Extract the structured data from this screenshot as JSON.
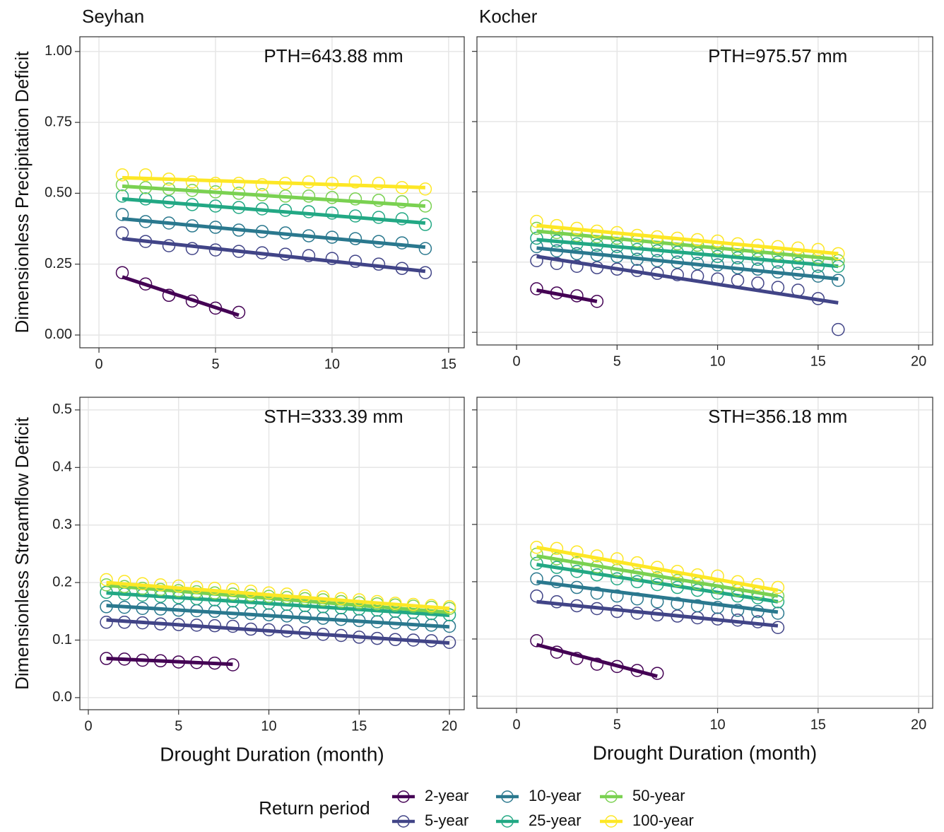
{
  "chart_data": [
    {
      "type": "scatter",
      "title": "Seyhan",
      "ylabel": "Dimensionless Precipitation Deficit",
      "annotation": "PTH=643.88 mm",
      "xlim": [
        -0.82,
        15.67
      ],
      "xticks": [
        0,
        5,
        10,
        15
      ],
      "ylim": [
        -0.045,
        1.052
      ],
      "yticks": [
        {
          "value": 0,
          "label": "0.00"
        },
        0.25,
        {
          "value": 0.5,
          "label": "0.50"
        },
        0.75,
        {
          "value": 1,
          "label": "1.00"
        }
      ],
      "grid": true,
      "series": [
        {
          "x": [
            1,
            2,
            3,
            4,
            5,
            6
          ],
          "values": [
            0.22,
            0.18,
            0.14,
            0.12,
            0.095,
            0.08
          ],
          "fit": [
            0.205,
            0.07
          ]
        },
        {
          "x": [
            1,
            2,
            3,
            4,
            5,
            6,
            7,
            8,
            9,
            10,
            11,
            12,
            13,
            14
          ],
          "values": [
            0.36,
            0.33,
            0.315,
            0.305,
            0.3,
            0.295,
            0.29,
            0.285,
            0.28,
            0.27,
            0.26,
            0.25,
            0.235,
            0.22
          ],
          "fit": [
            0.34,
            0.225
          ]
        },
        {
          "x": [
            1,
            2,
            3,
            4,
            5,
            6,
            7,
            8,
            9,
            10,
            11,
            12,
            13,
            14
          ],
          "values": [
            0.425,
            0.4,
            0.395,
            0.385,
            0.38,
            0.37,
            0.365,
            0.36,
            0.35,
            0.345,
            0.34,
            0.33,
            0.325,
            0.305
          ],
          "fit": [
            0.41,
            0.31
          ]
        },
        {
          "x": [
            1,
            2,
            3,
            4,
            5,
            6,
            7,
            8,
            9,
            10,
            11,
            12,
            13,
            14
          ],
          "values": [
            0.49,
            0.48,
            0.47,
            0.46,
            0.455,
            0.45,
            0.445,
            0.44,
            0.435,
            0.43,
            0.42,
            0.415,
            0.41,
            0.39
          ],
          "fit": [
            0.48,
            0.395
          ]
        },
        {
          "x": [
            1,
            2,
            3,
            4,
            5,
            6,
            7,
            8,
            9,
            10,
            11,
            12,
            13,
            14
          ],
          "values": [
            0.53,
            0.52,
            0.515,
            0.51,
            0.505,
            0.5,
            0.495,
            0.49,
            0.49,
            0.485,
            0.48,
            0.475,
            0.47,
            0.455
          ],
          "fit": [
            0.525,
            0.455
          ]
        },
        {
          "x": [
            1,
            2,
            3,
            4,
            5,
            6,
            7,
            8,
            9,
            10,
            11,
            12,
            13,
            14
          ],
          "values": [
            0.565,
            0.565,
            0.55,
            0.54,
            0.535,
            0.535,
            0.53,
            0.535,
            0.54,
            0.535,
            0.54,
            0.535,
            0.52,
            0.515
          ],
          "fit": [
            0.555,
            0.52
          ]
        }
      ]
    },
    {
      "type": "scatter",
      "title": "Kocher",
      "annotation": "PTH=975.57 mm",
      "xlim": [
        -1.97,
        20.7
      ],
      "xticks": [
        0,
        5,
        10,
        15,
        20
      ],
      "ylim": [
        -0.045,
        1.052
      ],
      "yticks": [
        0,
        0.25,
        0.5,
        0.75,
        1
      ],
      "grid": true,
      "series": [
        {
          "x": [
            1,
            2,
            3,
            4
          ],
          "values": [
            0.155,
            0.14,
            0.13,
            0.11
          ],
          "fit": [
            0.15,
            0.11
          ]
        },
        {
          "x": [
            1,
            2,
            3,
            4,
            5,
            6,
            7,
            8,
            9,
            10,
            11,
            12,
            13,
            14,
            15,
            16
          ],
          "values": [
            0.255,
            0.245,
            0.235,
            0.23,
            0.225,
            0.22,
            0.21,
            0.205,
            0.2,
            0.19,
            0.185,
            0.175,
            0.16,
            0.15,
            0.12,
            0.01
          ],
          "fit": [
            0.27,
            0.105
          ]
        },
        {
          "x": [
            1,
            2,
            3,
            4,
            5,
            6,
            7,
            8,
            9,
            10,
            11,
            12,
            13,
            14,
            15,
            16
          ],
          "values": [
            0.305,
            0.29,
            0.28,
            0.275,
            0.27,
            0.26,
            0.255,
            0.25,
            0.245,
            0.24,
            0.23,
            0.225,
            0.215,
            0.21,
            0.2,
            0.185
          ],
          "fit": [
            0.3,
            0.19
          ]
        },
        {
          "x": [
            1,
            2,
            3,
            4,
            5,
            6,
            7,
            8,
            9,
            10,
            11,
            12,
            13,
            14,
            15,
            16
          ],
          "values": [
            0.335,
            0.325,
            0.315,
            0.31,
            0.305,
            0.295,
            0.29,
            0.285,
            0.28,
            0.27,
            0.265,
            0.26,
            0.25,
            0.245,
            0.235,
            0.235
          ],
          "fit": [
            0.33,
            0.235
          ]
        },
        {
          "x": [
            1,
            2,
            3,
            4,
            5,
            6,
            7,
            8,
            9,
            10,
            11,
            12,
            13,
            14,
            15,
            16
          ],
          "values": [
            0.37,
            0.355,
            0.345,
            0.34,
            0.335,
            0.325,
            0.32,
            0.315,
            0.31,
            0.3,
            0.295,
            0.29,
            0.28,
            0.275,
            0.265,
            0.255
          ],
          "fit": [
            0.36,
            0.26
          ]
        },
        {
          "x": [
            1,
            2,
            3,
            4,
            5,
            6,
            7,
            8,
            9,
            10,
            11,
            12,
            13,
            14,
            15,
            16
          ],
          "values": [
            0.395,
            0.38,
            0.37,
            0.36,
            0.355,
            0.345,
            0.34,
            0.335,
            0.33,
            0.325,
            0.315,
            0.31,
            0.305,
            0.3,
            0.295,
            0.28
          ],
          "fit": [
            0.38,
            0.28
          ]
        }
      ]
    },
    {
      "type": "scatter",
      "ylabel": "Dimensionless Streamflow Deficit",
      "xlabel": "Drought Duration (month)",
      "annotation": "STH=333.39 mm",
      "xlim": [
        -0.47,
        20.82
      ],
      "xticks": [
        0,
        5,
        10,
        15,
        20
      ],
      "ylim": [
        -0.021,
        0.522
      ],
      "yticks": [
        {
          "value": 0,
          "label": "0.0"
        },
        0.1,
        0.2,
        0.3,
        0.4,
        0.5
      ],
      "grid": true,
      "series": [
        {
          "x": [
            1,
            2,
            3,
            4,
            5,
            6,
            7,
            8
          ],
          "values": [
            0.068,
            0.067,
            0.065,
            0.064,
            0.062,
            0.061,
            0.06,
            0.057
          ],
          "fit": [
            0.068,
            0.058
          ]
        },
        {
          "x": [
            1,
            2,
            3,
            4,
            5,
            6,
            7,
            8,
            9,
            10,
            11,
            12,
            13,
            14,
            15,
            16,
            17,
            18,
            19,
            20
          ],
          "values": [
            0.131,
            0.131,
            0.13,
            0.128,
            0.127,
            0.126,
            0.125,
            0.124,
            0.119,
            0.118,
            0.116,
            0.113,
            0.11,
            0.108,
            0.105,
            0.103,
            0.101,
            0.1,
            0.099,
            0.096
          ],
          "fit": [
            0.135,
            0.095
          ]
        },
        {
          "x": [
            1,
            2,
            3,
            4,
            5,
            6,
            7,
            8,
            9,
            10,
            11,
            12,
            13,
            14,
            15,
            16,
            17,
            18,
            19,
            20
          ],
          "values": [
            0.158,
            0.157,
            0.155,
            0.154,
            0.152,
            0.151,
            0.15,
            0.148,
            0.146,
            0.144,
            0.142,
            0.14,
            0.138,
            0.136,
            0.134,
            0.132,
            0.13,
            0.128,
            0.126,
            0.124
          ],
          "fit": [
            0.16,
            0.123
          ]
        },
        {
          "x": [
            1,
            2,
            3,
            4,
            5,
            6,
            7,
            8,
            9,
            10,
            11,
            12,
            13,
            14,
            15,
            16,
            17,
            18,
            19,
            20
          ],
          "values": [
            0.183,
            0.18,
            0.178,
            0.176,
            0.174,
            0.172,
            0.17,
            0.168,
            0.166,
            0.164,
            0.162,
            0.16,
            0.158,
            0.156,
            0.154,
            0.152,
            0.15,
            0.148,
            0.146,
            0.144
          ],
          "fit": [
            0.182,
            0.143
          ]
        },
        {
          "x": [
            1,
            2,
            3,
            4,
            5,
            6,
            7,
            8,
            9,
            10,
            11,
            12,
            13,
            14,
            15,
            16,
            17,
            18,
            19,
            20
          ],
          "values": [
            0.196,
            0.193,
            0.19,
            0.188,
            0.186,
            0.184,
            0.182,
            0.18,
            0.178,
            0.176,
            0.174,
            0.172,
            0.17,
            0.167,
            0.165,
            0.163,
            0.161,
            0.159,
            0.157,
            0.155
          ],
          "fit": [
            0.195,
            0.148
          ]
        },
        {
          "x": [
            1,
            2,
            3,
            4,
            5,
            6,
            7,
            8,
            9,
            10,
            11,
            12,
            13,
            14,
            15,
            16,
            17,
            18,
            19,
            20
          ],
          "values": [
            0.205,
            0.202,
            0.198,
            0.196,
            0.194,
            0.192,
            0.19,
            0.188,
            0.185,
            0.182,
            0.18,
            0.177,
            0.175,
            0.172,
            0.17,
            0.167,
            0.164,
            0.162,
            0.16,
            0.158
          ],
          "fit": [
            0.2,
            0.155
          ]
        }
      ]
    },
    {
      "type": "scatter",
      "xlabel": "Drought Duration (month)",
      "annotation": "STH=356.18 mm",
      "xlim": [
        -1.97,
        20.7
      ],
      "xticks": [
        0,
        5,
        10,
        15,
        20
      ],
      "ylim": [
        -0.021,
        0.522
      ],
      "yticks": [
        0,
        0.1,
        0.2,
        0.3,
        0.4,
        0.5
      ],
      "grid": true,
      "series": [
        {
          "x": [
            1,
            2,
            3,
            4,
            5,
            6,
            7
          ],
          "values": [
            0.097,
            0.077,
            0.066,
            0.056,
            0.052,
            0.045,
            0.04
          ],
          "fit": [
            0.09,
            0.035
          ]
        },
        {
          "x": [
            1,
            2,
            3,
            4,
            5,
            6,
            7,
            8,
            9,
            10,
            11,
            12,
            13
          ],
          "values": [
            0.175,
            0.165,
            0.158,
            0.153,
            0.148,
            0.145,
            0.142,
            0.14,
            0.137,
            0.135,
            0.133,
            0.13,
            0.12
          ],
          "fit": [
            0.165,
            0.123
          ]
        },
        {
          "x": [
            1,
            2,
            3,
            4,
            5,
            6,
            7,
            8,
            9,
            10,
            11,
            12,
            13
          ],
          "values": [
            0.205,
            0.2,
            0.19,
            0.18,
            0.175,
            0.17,
            0.165,
            0.162,
            0.158,
            0.155,
            0.15,
            0.148,
            0.145
          ],
          "fit": [
            0.2,
            0.147
          ]
        },
        {
          "x": [
            1,
            2,
            3,
            4,
            5,
            6,
            7,
            8,
            9,
            10,
            11,
            12,
            13
          ],
          "values": [
            0.232,
            0.225,
            0.218,
            0.212,
            0.205,
            0.2,
            0.195,
            0.19,
            0.185,
            0.18,
            0.175,
            0.172,
            0.165
          ],
          "fit": [
            0.23,
            0.165
          ]
        },
        {
          "x": [
            1,
            2,
            3,
            4,
            5,
            6,
            7,
            8,
            9,
            10,
            11,
            12,
            13
          ],
          "values": [
            0.248,
            0.24,
            0.233,
            0.226,
            0.22,
            0.213,
            0.207,
            0.202,
            0.197,
            0.19,
            0.185,
            0.18,
            0.175
          ],
          "fit": [
            0.245,
            0.175
          ]
        },
        {
          "x": [
            1,
            2,
            3,
            4,
            5,
            6,
            7,
            8,
            9,
            10,
            11,
            12,
            13
          ],
          "values": [
            0.26,
            0.258,
            0.252,
            0.245,
            0.24,
            0.233,
            0.225,
            0.218,
            0.212,
            0.21,
            0.2,
            0.195,
            0.19
          ],
          "fit": [
            0.26,
            0.185
          ]
        }
      ]
    }
  ],
  "legend": {
    "title": "Return period",
    "names": [
      "2-year",
      "5-year",
      "10-year",
      "25-year",
      "50-year",
      "100-year"
    ],
    "colors": [
      "#440154",
      "#414487",
      "#2a788e",
      "#22a884",
      "#7ad151",
      "#fde725"
    ]
  }
}
